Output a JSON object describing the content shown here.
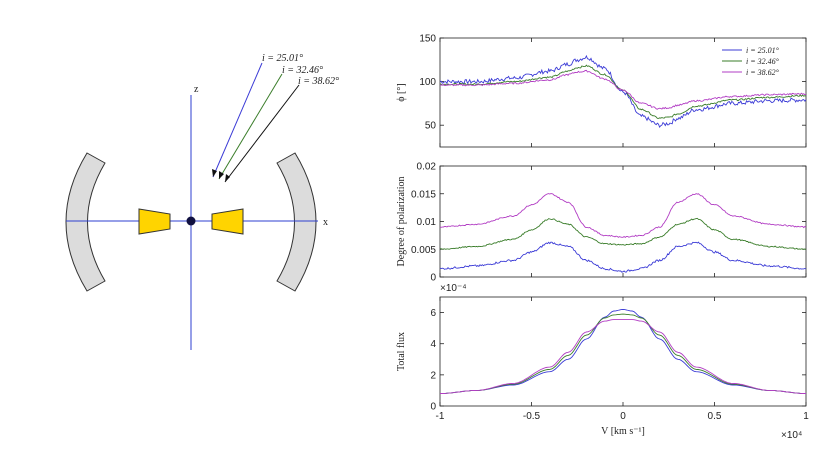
{
  "colors": {
    "i1": "#3b3bd6",
    "i2": "#3a7d2a",
    "i3": "#b23ec4",
    "axis_blue": "#2e3fd1",
    "torus": "#ffd400",
    "clouds": "#dcdcdc"
  },
  "diagram": {
    "axis_x_label": "x",
    "axis_z_label": "z",
    "inclinations": [
      "i = 25.01°",
      "i = 32.46°",
      "i = 38.62°"
    ]
  },
  "chart_data": [
    {
      "type": "line",
      "panel": "top",
      "ylabel": "ϕ [°]",
      "ylim": [
        25,
        150
      ],
      "yticks": [
        "50",
        "100",
        "150"
      ],
      "xlim": [
        -10000,
        10000
      ],
      "legend": [
        "i = 25.01°",
        "i = 32.46°",
        "i = 38.62°"
      ],
      "legend_position": "top-right",
      "x": [
        -10000,
        -8000,
        -6000,
        -4000,
        -3000,
        -2500,
        -2000,
        -1000,
        0,
        1000,
        2000,
        2500,
        3000,
        4000,
        6000,
        8000,
        10000
      ],
      "series": [
        {
          "name": "i = 25.01°",
          "values": [
            100,
            100,
            104,
            112,
            120,
            125,
            128,
            115,
            88,
            60,
            50,
            52,
            58,
            68,
            75,
            78,
            79
          ]
        },
        {
          "name": "i = 32.46°",
          "values": [
            97,
            97,
            100,
            105,
            112,
            116,
            118,
            108,
            90,
            68,
            58,
            59,
            63,
            72,
            79,
            82,
            84
          ]
        },
        {
          "name": "i = 38.62°",
          "values": [
            96,
            96,
            98,
            102,
            108,
            111,
            112,
            103,
            90,
            75,
            69,
            70,
            73,
            78,
            83,
            85,
            86
          ]
        }
      ]
    },
    {
      "type": "line",
      "panel": "middle",
      "ylabel": "Degree of polarization",
      "ylim": [
        0,
        0.02
      ],
      "yticks": [
        "0",
        "0.005",
        "0.01",
        "0.015",
        "0.02"
      ],
      "xlim": [
        -10000,
        10000
      ],
      "x": [
        -10000,
        -8000,
        -6000,
        -5000,
        -4000,
        -3000,
        -2000,
        -1000,
        0,
        1000,
        2000,
        3000,
        4000,
        5000,
        6000,
        8000,
        10000
      ],
      "series": [
        {
          "name": "i = 25.01°",
          "values": [
            0.0015,
            0.002,
            0.003,
            0.0045,
            0.0062,
            0.0055,
            0.003,
            0.0015,
            0.001,
            0.0015,
            0.003,
            0.0055,
            0.0062,
            0.0045,
            0.003,
            0.002,
            0.0015
          ]
        },
        {
          "name": "i = 32.46°",
          "values": [
            0.005,
            0.0055,
            0.0068,
            0.0085,
            0.0105,
            0.0095,
            0.0072,
            0.006,
            0.0058,
            0.006,
            0.0072,
            0.0095,
            0.0105,
            0.0085,
            0.0068,
            0.0055,
            0.005
          ]
        },
        {
          "name": "i = 38.62°",
          "values": [
            0.009,
            0.0095,
            0.011,
            0.013,
            0.015,
            0.0135,
            0.009,
            0.0075,
            0.0072,
            0.0075,
            0.009,
            0.0135,
            0.015,
            0.013,
            0.011,
            0.0095,
            0.009
          ]
        }
      ]
    },
    {
      "type": "line",
      "panel": "bottom",
      "ylabel": "Total flux",
      "ylim": [
        0,
        7
      ],
      "yticks": [
        "0",
        "2",
        "4",
        "6"
      ],
      "yexponent": "×10⁻⁴",
      "xlim": [
        -10000,
        10000
      ],
      "xticks": [
        "-1",
        "-0.5",
        "0",
        "0.5",
        "1"
      ],
      "xexponent": "×10⁴",
      "xlabel": "V [km s⁻¹]",
      "x": [
        -10000,
        -8000,
        -6000,
        -4000,
        -3000,
        -2000,
        -1000,
        -500,
        0,
        500,
        1000,
        2000,
        3000,
        4000,
        6000,
        8000,
        10000
      ],
      "series": [
        {
          "name": "i = 25.01°",
          "values": [
            0.8,
            1.0,
            1.35,
            2.2,
            3.0,
            4.3,
            5.7,
            6.1,
            6.2,
            6.1,
            5.7,
            4.3,
            3.0,
            2.2,
            1.35,
            1.0,
            0.8
          ]
        },
        {
          "name": "i = 32.46°",
          "values": [
            0.8,
            1.0,
            1.4,
            2.35,
            3.25,
            4.55,
            5.65,
            5.85,
            5.9,
            5.85,
            5.65,
            4.55,
            3.25,
            2.35,
            1.4,
            1.0,
            0.8
          ]
        },
        {
          "name": "i = 38.62°",
          "values": [
            0.8,
            1.0,
            1.45,
            2.5,
            3.45,
            4.75,
            5.45,
            5.55,
            5.55,
            5.55,
            5.45,
            4.75,
            3.45,
            2.5,
            1.45,
            1.0,
            0.8
          ]
        }
      ]
    }
  ]
}
